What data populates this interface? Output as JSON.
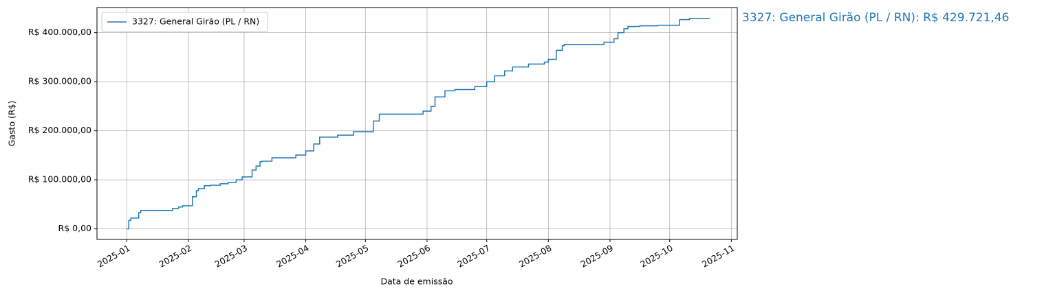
{
  "chart_data": {
    "type": "line",
    "drawstyle": "steps-post",
    "xlabel": "Data de emissão",
    "ylabel": "Gasto (R$)",
    "annotation": "3327: General Girão (PL / RN): R$ 429.721,46",
    "x": [
      "2025-01-01",
      "2025-01-02",
      "2025-01-03",
      "2025-01-07",
      "2025-01-08",
      "2025-01-24",
      "2025-01-27",
      "2025-01-29",
      "2025-02-03",
      "2025-02-05",
      "2025-02-06",
      "2025-02-09",
      "2025-02-12",
      "2025-02-17",
      "2025-02-21",
      "2025-02-25",
      "2025-02-28",
      "2025-03-05",
      "2025-03-07",
      "2025-03-09",
      "2025-03-10",
      "2025-03-15",
      "2025-03-27",
      "2025-04-01",
      "2025-04-05",
      "2025-04-08",
      "2025-04-17",
      "2025-04-25",
      "2025-05-05",
      "2025-05-08",
      "2025-05-30",
      "2025-06-03",
      "2025-06-05",
      "2025-06-10",
      "2025-06-15",
      "2025-06-25",
      "2025-07-01",
      "2025-07-05",
      "2025-07-10",
      "2025-07-14",
      "2025-07-22",
      "2025-07-30",
      "2025-08-01",
      "2025-08-05",
      "2025-08-08",
      "2025-08-09",
      "2025-08-29",
      "2025-09-03",
      "2025-09-05",
      "2025-09-08",
      "2025-09-10",
      "2025-09-16",
      "2025-09-25",
      "2025-10-06",
      "2025-10-11",
      "2025-10-21"
    ],
    "series": [
      {
        "name": "3327: General Girão (PL / RN)",
        "color": "#1f77b4",
        "values": [
          0,
          17000,
          22000,
          33000,
          37600,
          41800,
          44600,
          47000,
          65500,
          78000,
          82000,
          88000,
          89000,
          92000,
          95000,
          100000,
          106000,
          120000,
          128000,
          137000,
          138000,
          145000,
          150500,
          159000,
          173000,
          187000,
          191000,
          198000,
          220000,
          234000,
          240000,
          249500,
          269000,
          281500,
          284000,
          290000,
          300000,
          312000,
          322000,
          330000,
          336000,
          340000,
          345600,
          364000,
          373500,
          376000,
          380500,
          387500,
          400000,
          408000,
          412500,
          414000,
          415000,
          426500,
          429000,
          429721.46
        ]
      }
    ],
    "xlim": [
      "2024-12-17",
      "2025-11-04"
    ],
    "xticks": [
      "2025-01",
      "2025-02",
      "2025-03",
      "2025-04",
      "2025-05",
      "2025-06",
      "2025-07",
      "2025-08",
      "2025-09",
      "2025-10",
      "2025-11"
    ],
    "ylim": [
      -21486,
      451207
    ],
    "yticks": [
      {
        "value": 0,
        "label": "R$ 0,00"
      },
      {
        "value": 100000,
        "label": "R$ 100.000,00"
      },
      {
        "value": 200000,
        "label": "R$ 200.000,00"
      },
      {
        "value": 300000,
        "label": "R$ 300.000,00"
      },
      {
        "value": 400000,
        "label": "R$ 400.000,00"
      }
    ],
    "grid": true,
    "legend": "upper left"
  }
}
